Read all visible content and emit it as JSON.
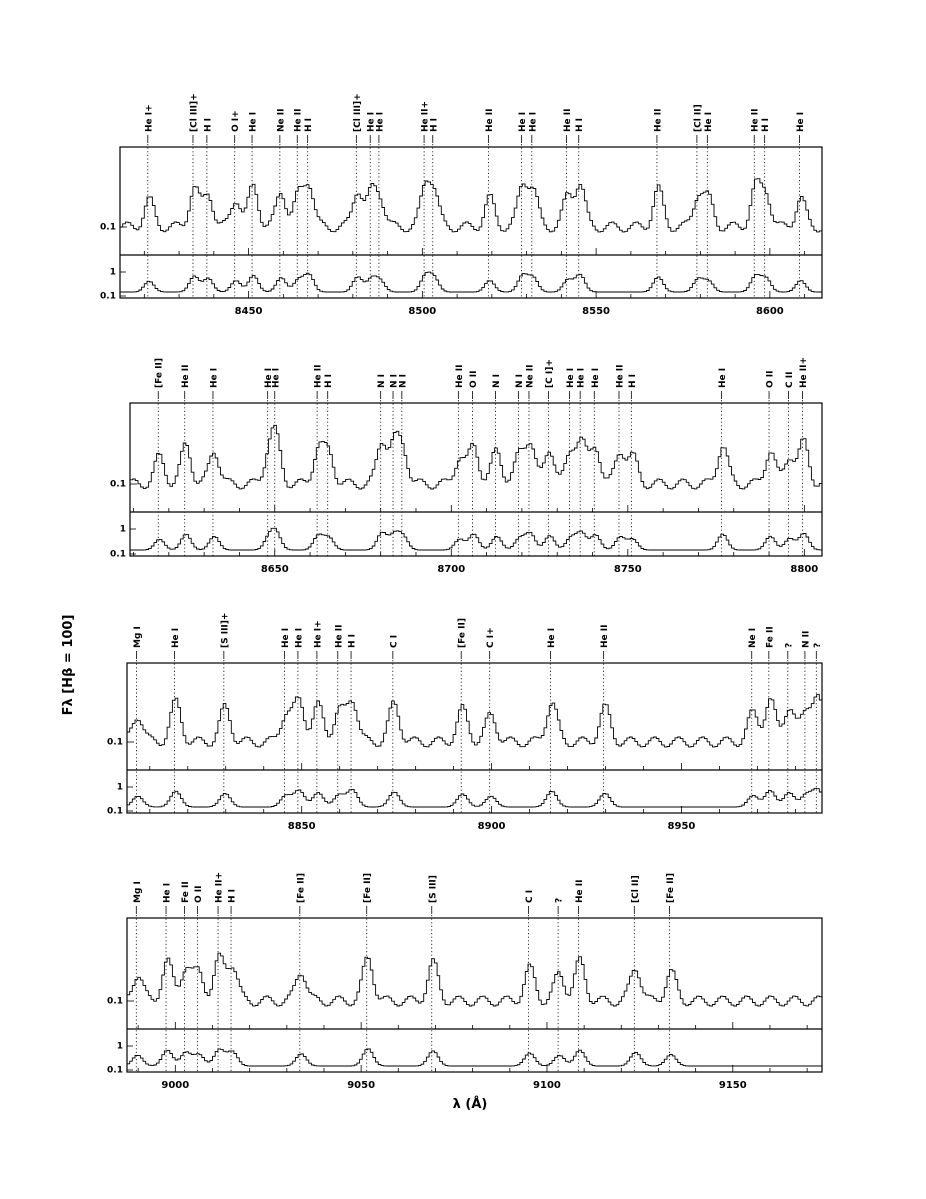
{
  "figure": {
    "ylabel": "Fλ [Hβ = 100]",
    "xlabel": "λ (Å)"
  },
  "chart_data": [
    {
      "type": "line",
      "xlim": [
        8413,
        8615
      ],
      "x_ticks": [
        8450,
        8500,
        8550,
        8600
      ],
      "upper_ticks": [
        "0.1"
      ],
      "lower_ticks": [
        "1",
        "0.1"
      ],
      "lines": [
        {
          "label": "He I+",
          "x": 8421.0
        },
        {
          "label": "[Cl III]+",
          "x": 8434.0
        },
        {
          "label": "H I",
          "x": 8438.0
        },
        {
          "label": "O I+",
          "x": 8446.0
        },
        {
          "label": "He I",
          "x": 8451.0
        },
        {
          "label": "Ne II",
          "x": 8459.0
        },
        {
          "label": "He II",
          "x": 8464.0
        },
        {
          "label": "H I",
          "x": 8467.0
        },
        {
          "label": "[Cl III]+",
          "x": 8481.0
        },
        {
          "label": "He I",
          "x": 8485.0
        },
        {
          "label": "He I",
          "x": 8487.5
        },
        {
          "label": "He II+",
          "x": 8500.5
        },
        {
          "label": "H I",
          "x": 8503.0
        },
        {
          "label": "He II",
          "x": 8519.0
        },
        {
          "label": "He I",
          "x": 8528.5
        },
        {
          "label": "He I",
          "x": 8531.5
        },
        {
          "label": "He II",
          "x": 8541.5
        },
        {
          "label": "H I",
          "x": 8545.0
        },
        {
          "label": "He II",
          "x": 8567.5
        },
        {
          "label": "[Cl II]",
          "x": 8579.0
        },
        {
          "label": "He I",
          "x": 8582.0
        },
        {
          "label": "He II",
          "x": 8595.5
        },
        {
          "label": "H I",
          "x": 8598.5
        },
        {
          "label": "He I",
          "x": 8608.5
        }
      ]
    },
    {
      "type": "line",
      "xlim": [
        8609,
        8805
      ],
      "x_ticks": [
        8650,
        8700,
        8750,
        8800
      ],
      "upper_ticks": [
        "0.1"
      ],
      "lower_ticks": [
        "1",
        "0.1"
      ],
      "lines": [
        {
          "label": "[Fe II]",
          "x": 8617.0
        },
        {
          "label": "He II",
          "x": 8624.5
        },
        {
          "label": "He I",
          "x": 8632.5
        },
        {
          "label": "He I",
          "x": 8648.0
        },
        {
          "label": "He I",
          "x": 8650.0
        },
        {
          "label": "He II",
          "x": 8662.0
        },
        {
          "label": "H I",
          "x": 8665.0
        },
        {
          "label": "N I",
          "x": 8680.0
        },
        {
          "label": "N I",
          "x": 8683.5
        },
        {
          "label": "N I",
          "x": 8686.0
        },
        {
          "label": "He II",
          "x": 8702.0
        },
        {
          "label": "O II",
          "x": 8706.0
        },
        {
          "label": "N I",
          "x": 8712.5
        },
        {
          "label": "N I",
          "x": 8719.0
        },
        {
          "label": "Ne II",
          "x": 8722.0
        },
        {
          "label": "[C I]+",
          "x": 8727.5
        },
        {
          "label": "He I",
          "x": 8733.5
        },
        {
          "label": "He I",
          "x": 8736.5
        },
        {
          "label": "He I",
          "x": 8740.5
        },
        {
          "label": "He II",
          "x": 8747.5
        },
        {
          "label": "H I",
          "x": 8751.0
        },
        {
          "label": "He I",
          "x": 8776.5
        },
        {
          "label": "O II",
          "x": 8790.0
        },
        {
          "label": "C II",
          "x": 8795.5
        },
        {
          "label": "He II+",
          "x": 8799.5
        }
      ]
    },
    {
      "type": "line",
      "xlim": [
        8804,
        8987
      ],
      "x_ticks": [
        8850,
        8900,
        8950
      ],
      "upper_ticks": [
        "0.1"
      ],
      "lower_ticks": [
        "1",
        "0.1"
      ],
      "lines": [
        {
          "label": "Mg I",
          "x": 8806.5
        },
        {
          "label": "He I",
          "x": 8816.5
        },
        {
          "label": "[S III]+",
          "x": 8829.5
        },
        {
          "label": "He I",
          "x": 8845.5
        },
        {
          "label": "He I",
          "x": 8849.0
        },
        {
          "label": "He I+",
          "x": 8854.0
        },
        {
          "label": "He II",
          "x": 8859.5
        },
        {
          "label": "H I",
          "x": 8863.0
        },
        {
          "label": "C I",
          "x": 8874.0
        },
        {
          "label": "[Fe II]",
          "x": 8892.0
        },
        {
          "label": "C I+",
          "x": 8899.5
        },
        {
          "label": "He I",
          "x": 8915.5
        },
        {
          "label": "He II",
          "x": 8929.5
        },
        {
          "label": "Ne I",
          "x": 8968.5
        },
        {
          "label": "Fe II",
          "x": 8973.0
        },
        {
          "label": "?",
          "x": 8978.0
        },
        {
          "label": "N II",
          "x": 8982.5
        },
        {
          "label": "?",
          "x": 8985.5
        }
      ]
    },
    {
      "type": "line",
      "xlim": [
        8987,
        9174
      ],
      "x_ticks": [
        9000,
        9050,
        9100,
        9150
      ],
      "upper_ticks": [
        "0.1"
      ],
      "lower_ticks": [
        "1",
        "0.1"
      ],
      "lines": [
        {
          "label": "Mg I",
          "x": 8989.5
        },
        {
          "label": "He I",
          "x": 8997.5
        },
        {
          "label": "Fe II",
          "x": 9002.5
        },
        {
          "label": "O II",
          "x": 9006.0
        },
        {
          "label": "He II+",
          "x": 9011.5
        },
        {
          "label": "H I",
          "x": 9015.0
        },
        {
          "label": "[Fe II]",
          "x": 9033.5
        },
        {
          "label": "[Fe II]",
          "x": 9051.5
        },
        {
          "label": "[S III]",
          "x": 9069.0
        },
        {
          "label": "C I",
          "x": 9095.0
        },
        {
          "label": "?",
          "x": 9103.0
        },
        {
          "label": "He II",
          "x": 9108.5
        },
        {
          "label": "[Cl II]",
          "x": 9123.5
        },
        {
          "label": "[Fe II]",
          "x": 9133.0
        }
      ]
    }
  ]
}
